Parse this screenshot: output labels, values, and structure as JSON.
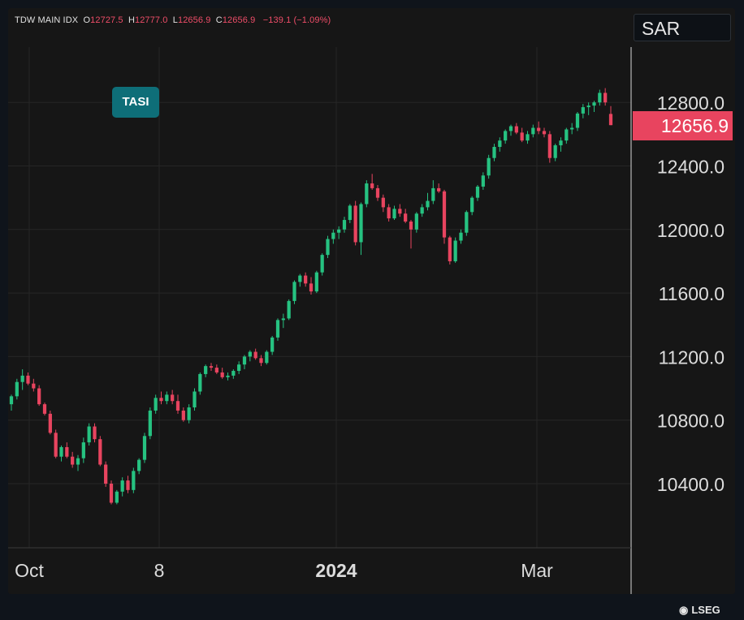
{
  "header": {
    "symbol": "TDW MAIN IDX",
    "open_label": "O",
    "open": "12727.5",
    "high_label": "H",
    "high": "12777.0",
    "low_label": "L",
    "low": "12656.9",
    "close_label": "C",
    "close": "12656.9",
    "change": "−139.1 (−1.09%)"
  },
  "currency": "SAR",
  "instrument_badge": "TASI",
  "branding": {
    "name": "LSEG"
  },
  "colors": {
    "up": "#26c281",
    "down": "#e8445f",
    "badge": "#0e6e78",
    "last_price": "#e8445f"
  },
  "chart_data": {
    "type": "candlestick",
    "title": "",
    "xlabel": "",
    "ylabel": "",
    "x_ticks": [
      "Oct",
      "8",
      "2024",
      "Mar"
    ],
    "y_ticks": [
      "10400.0",
      "10800.0",
      "11200.0",
      "11600.0",
      "12000.0",
      "12400.0",
      "12800.0"
    ],
    "ylim": [
      10100,
      13120
    ],
    "last_price": "12656.9",
    "grid": true,
    "candles": [
      [
        10900,
        10960,
        10860,
        10950
      ],
      [
        10950,
        11060,
        10930,
        11040
      ],
      [
        11040,
        11120,
        10990,
        11080
      ],
      [
        11080,
        11100,
        11020,
        11030
      ],
      [
        11030,
        11060,
        10980,
        11000
      ],
      [
        11000,
        11020,
        10890,
        10900
      ],
      [
        10900,
        10910,
        10830,
        10840
      ],
      [
        10840,
        10860,
        10710,
        10720
      ],
      [
        10720,
        10740,
        10560,
        10570
      ],
      [
        10570,
        10640,
        10540,
        10630
      ],
      [
        10630,
        10660,
        10560,
        10570
      ],
      [
        10570,
        10600,
        10500,
        10520
      ],
      [
        10520,
        10580,
        10480,
        10560
      ],
      [
        10560,
        10690,
        10530,
        10660
      ],
      [
        10660,
        10780,
        10640,
        10760
      ],
      [
        10760,
        10780,
        10660,
        10680
      ],
      [
        10680,
        10700,
        10510,
        10520
      ],
      [
        10520,
        10540,
        10380,
        10400
      ],
      [
        10400,
        10420,
        10270,
        10280
      ],
      [
        10280,
        10360,
        10270,
        10350
      ],
      [
        10350,
        10440,
        10320,
        10420
      ],
      [
        10420,
        10450,
        10340,
        10360
      ],
      [
        10360,
        10500,
        10340,
        10480
      ],
      [
        10480,
        10560,
        10460,
        10550
      ],
      [
        10550,
        10720,
        10530,
        10700
      ],
      [
        10700,
        10880,
        10680,
        10860
      ],
      [
        10860,
        10960,
        10840,
        10940
      ],
      [
        10940,
        10980,
        10900,
        10920
      ],
      [
        10920,
        10980,
        10900,
        10960
      ],
      [
        10960,
        10990,
        10900,
        10920
      ],
      [
        10920,
        10960,
        10840,
        10860
      ],
      [
        10860,
        10880,
        10790,
        10800
      ],
      [
        10800,
        10900,
        10780,
        10880
      ],
      [
        10880,
        11000,
        10860,
        10980
      ],
      [
        10980,
        11100,
        10960,
        11090
      ],
      [
        11090,
        11150,
        11070,
        11140
      ],
      [
        11140,
        11160,
        11110,
        11130
      ],
      [
        11130,
        11150,
        11090,
        11100
      ],
      [
        11100,
        11130,
        11060,
        11070
      ],
      [
        11070,
        11100,
        11050,
        11080
      ],
      [
        11080,
        11120,
        11060,
        11110
      ],
      [
        11110,
        11170,
        11090,
        11150
      ],
      [
        11150,
        11210,
        11120,
        11200
      ],
      [
        11200,
        11240,
        11170,
        11230
      ],
      [
        11230,
        11250,
        11180,
        11190
      ],
      [
        11190,
        11210,
        11140,
        11160
      ],
      [
        11160,
        11240,
        11150,
        11230
      ],
      [
        11230,
        11330,
        11210,
        11320
      ],
      [
        11320,
        11440,
        11300,
        11430
      ],
      [
        11430,
        11470,
        11380,
        11440
      ],
      [
        11440,
        11560,
        11430,
        11550
      ],
      [
        11550,
        11680,
        11530,
        11670
      ],
      [
        11670,
        11720,
        11640,
        11710
      ],
      [
        11710,
        11730,
        11640,
        11660
      ],
      [
        11660,
        11700,
        11590,
        11610
      ],
      [
        11610,
        11740,
        11600,
        11730
      ],
      [
        11730,
        11850,
        11710,
        11840
      ],
      [
        11840,
        11960,
        11820,
        11940
      ],
      [
        11940,
        12000,
        11910,
        11980
      ],
      [
        11980,
        12020,
        11940,
        12000
      ],
      [
        12000,
        12080,
        11980,
        12060
      ],
      [
        12060,
        12160,
        12040,
        12150
      ],
      [
        12150,
        12180,
        11900,
        11920
      ],
      [
        11920,
        12170,
        11840,
        12160
      ],
      [
        12160,
        12310,
        12140,
        12290
      ],
      [
        12290,
        12350,
        12250,
        12260
      ],
      [
        12260,
        12280,
        12180,
        12200
      ],
      [
        12200,
        12220,
        12110,
        12140
      ],
      [
        12140,
        12160,
        12050,
        12070
      ],
      [
        12070,
        12150,
        12060,
        12130
      ],
      [
        12130,
        12160,
        12080,
        12100
      ],
      [
        12100,
        12130,
        12040,
        12050
      ],
      [
        12050,
        12060,
        11880,
        12000
      ],
      [
        12000,
        12110,
        11980,
        12100
      ],
      [
        12100,
        12160,
        12080,
        12140
      ],
      [
        12140,
        12230,
        12120,
        12180
      ],
      [
        12180,
        12310,
        12160,
        12260
      ],
      [
        12260,
        12290,
        12230,
        12240
      ],
      [
        12240,
        12250,
        11910,
        11950
      ],
      [
        11950,
        11960,
        11780,
        11800
      ],
      [
        11800,
        11950,
        11790,
        11930
      ],
      [
        11930,
        12000,
        11910,
        11980
      ],
      [
        11980,
        12120,
        11960,
        12110
      ],
      [
        12110,
        12210,
        12090,
        12200
      ],
      [
        12200,
        12280,
        12180,
        12270
      ],
      [
        12270,
        12360,
        12250,
        12340
      ],
      [
        12340,
        12470,
        12320,
        12450
      ],
      [
        12450,
        12540,
        12430,
        12520
      ],
      [
        12520,
        12580,
        12490,
        12560
      ],
      [
        12560,
        12630,
        12540,
        12620
      ],
      [
        12620,
        12660,
        12590,
        12650
      ],
      [
        12650,
        12670,
        12600,
        12610
      ],
      [
        12610,
        12640,
        12550,
        12560
      ],
      [
        12560,
        12620,
        12540,
        12600
      ],
      [
        12600,
        12660,
        12580,
        12640
      ],
      [
        12640,
        12680,
        12600,
        12620
      ],
      [
        12620,
        12640,
        12580,
        12600
      ],
      [
        12600,
        12620,
        12420,
        12450
      ],
      [
        12450,
        12540,
        12430,
        12530
      ],
      [
        12530,
        12580,
        12490,
        12560
      ],
      [
        12560,
        12640,
        12540,
        12630
      ],
      [
        12630,
        12670,
        12600,
        12640
      ],
      [
        12640,
        12740,
        12620,
        12730
      ],
      [
        12730,
        12790,
        12700,
        12770
      ],
      [
        12770,
        12800,
        12720,
        12780
      ],
      [
        12780,
        12810,
        12740,
        12800
      ],
      [
        12800,
        12880,
        12780,
        12860
      ],
      [
        12860,
        12890,
        12780,
        12800
      ],
      [
        12727.5,
        12777.0,
        12656.9,
        12656.9
      ]
    ]
  }
}
